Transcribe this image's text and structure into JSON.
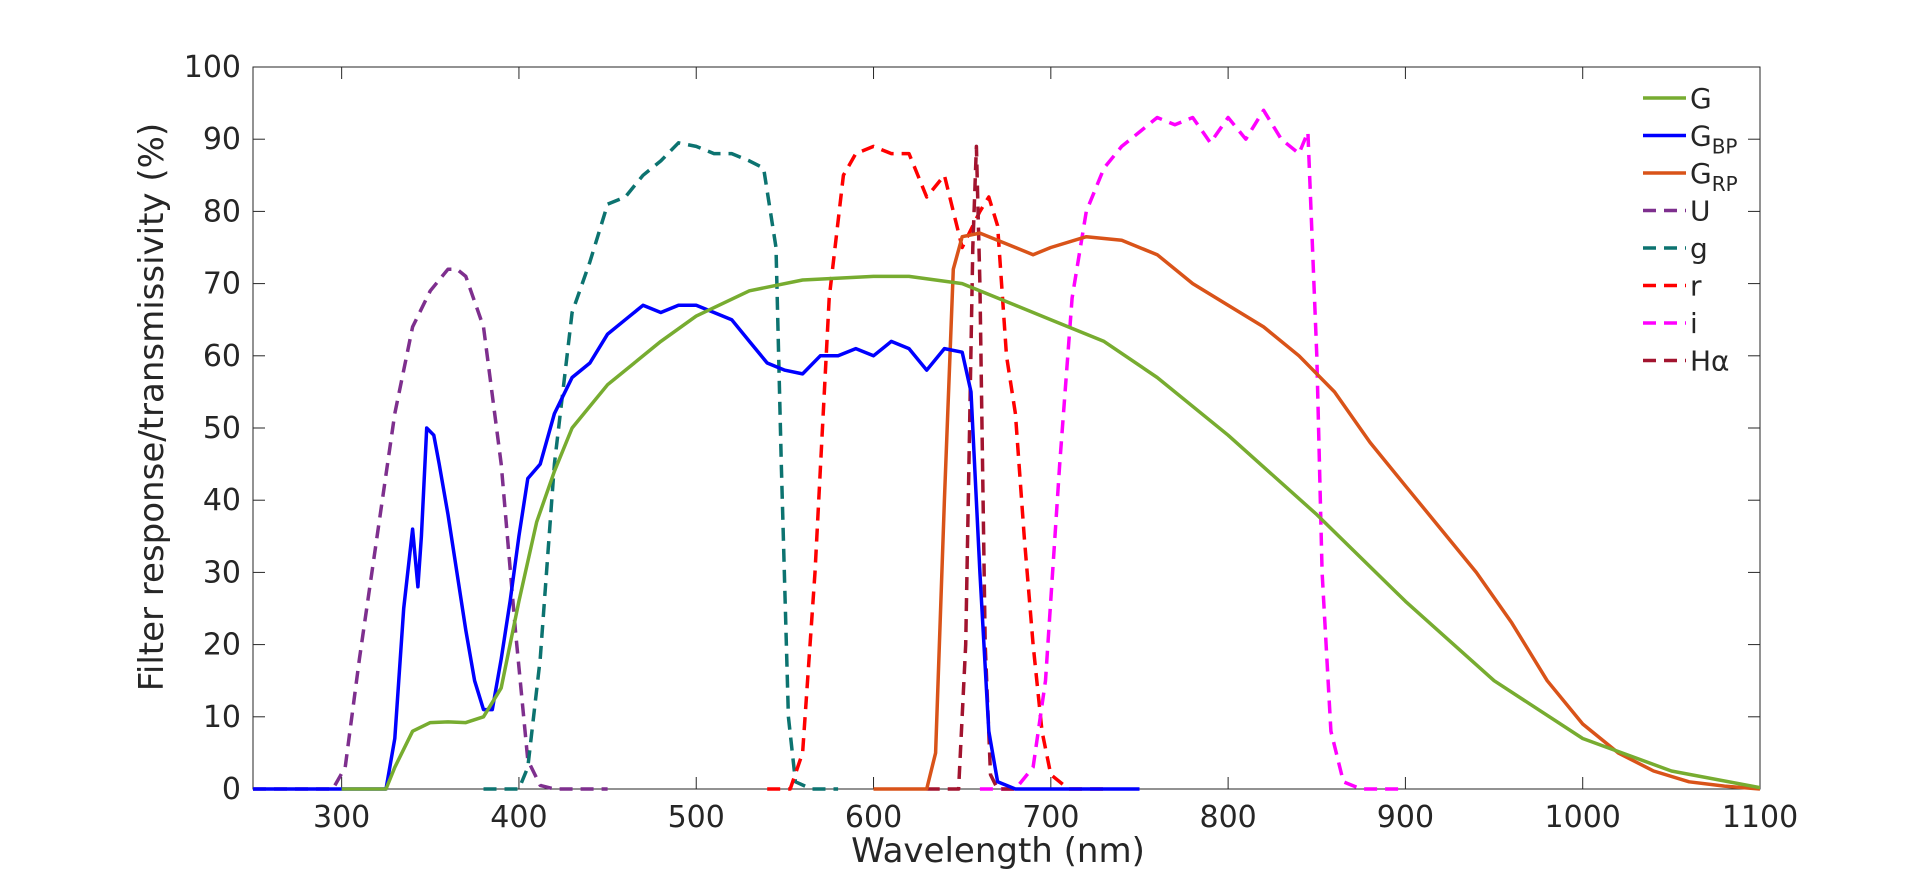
{
  "chart_data": {
    "type": "line",
    "title": "",
    "xlabel": "Wavelength (nm)",
    "ylabel": "Filter response/transmissivity (%)",
    "xlim": [
      250,
      1100
    ],
    "ylim": [
      0,
      100
    ],
    "xticks": [
      300,
      400,
      500,
      600,
      700,
      800,
      900,
      1000,
      1100
    ],
    "yticks": [
      0,
      10,
      20,
      30,
      40,
      50,
      60,
      70,
      80,
      90,
      100
    ],
    "grid": false,
    "legend_position": "top-right",
    "series": [
      {
        "key": "G",
        "name": "G",
        "sub": "",
        "color": "#77ac30",
        "dash": "solid",
        "points": [
          [
            300,
            0
          ],
          [
            325,
            0
          ],
          [
            330,
            3
          ],
          [
            340,
            8
          ],
          [
            350,
            9.2
          ],
          [
            360,
            9.3
          ],
          [
            370,
            9.2
          ],
          [
            380,
            10
          ],
          [
            390,
            14
          ],
          [
            400,
            26
          ],
          [
            410,
            37
          ],
          [
            420,
            44
          ],
          [
            430,
            50
          ],
          [
            450,
            56
          ],
          [
            480,
            62
          ],
          [
            500,
            65.5
          ],
          [
            530,
            69
          ],
          [
            560,
            70.5
          ],
          [
            600,
            71
          ],
          [
            620,
            71
          ],
          [
            650,
            70
          ],
          [
            680,
            67
          ],
          [
            700,
            65
          ],
          [
            730,
            62
          ],
          [
            760,
            57
          ],
          [
            800,
            49
          ],
          [
            850,
            38
          ],
          [
            900,
            26
          ],
          [
            950,
            15
          ],
          [
            1000,
            7
          ],
          [
            1050,
            2.5
          ],
          [
            1100,
            0.2
          ]
        ]
      },
      {
        "key": "GBP",
        "name": "G",
        "sub": "BP",
        "color": "#0000ff",
        "dash": "solid",
        "points": [
          [
            250,
            0
          ],
          [
            325,
            0
          ],
          [
            330,
            7
          ],
          [
            335,
            25
          ],
          [
            340,
            36
          ],
          [
            343,
            28
          ],
          [
            345,
            35
          ],
          [
            348,
            50
          ],
          [
            352,
            49
          ],
          [
            355,
            45
          ],
          [
            360,
            38
          ],
          [
            365,
            30
          ],
          [
            370,
            22
          ],
          [
            375,
            15
          ],
          [
            380,
            11
          ],
          [
            385,
            11
          ],
          [
            390,
            18
          ],
          [
            395,
            26
          ],
          [
            400,
            35
          ],
          [
            405,
            43
          ],
          [
            412,
            45
          ],
          [
            420,
            52
          ],
          [
            430,
            57
          ],
          [
            440,
            59
          ],
          [
            450,
            63
          ],
          [
            460,
            65
          ],
          [
            470,
            67
          ],
          [
            480,
            66
          ],
          [
            490,
            67
          ],
          [
            500,
            67
          ],
          [
            510,
            66
          ],
          [
            520,
            65
          ],
          [
            530,
            62
          ],
          [
            540,
            59
          ],
          [
            550,
            58
          ],
          [
            560,
            57.5
          ],
          [
            570,
            60
          ],
          [
            580,
            60
          ],
          [
            590,
            61
          ],
          [
            600,
            60
          ],
          [
            610,
            62
          ],
          [
            620,
            61
          ],
          [
            630,
            58
          ],
          [
            640,
            61
          ],
          [
            650,
            60.5
          ],
          [
            655,
            55
          ],
          [
            660,
            30
          ],
          [
            665,
            8
          ],
          [
            670,
            1
          ],
          [
            680,
            0
          ],
          [
            750,
            0
          ]
        ]
      },
      {
        "key": "GRP",
        "name": "G",
        "sub": "RP",
        "color": "#d95319",
        "dash": "solid",
        "points": [
          [
            600,
            0
          ],
          [
            630,
            0
          ],
          [
            635,
            5
          ],
          [
            640,
            40
          ],
          [
            645,
            72
          ],
          [
            650,
            76.5
          ],
          [
            660,
            77
          ],
          [
            680,
            75
          ],
          [
            690,
            74
          ],
          [
            700,
            75
          ],
          [
            720,
            76.5
          ],
          [
            740,
            76
          ],
          [
            760,
            74
          ],
          [
            780,
            70
          ],
          [
            800,
            67
          ],
          [
            820,
            64
          ],
          [
            840,
            60
          ],
          [
            860,
            55
          ],
          [
            880,
            48
          ],
          [
            900,
            42
          ],
          [
            920,
            36
          ],
          [
            940,
            30
          ],
          [
            960,
            23
          ],
          [
            980,
            15
          ],
          [
            1000,
            9
          ],
          [
            1020,
            5
          ],
          [
            1040,
            2.5
          ],
          [
            1060,
            1
          ],
          [
            1080,
            0.4
          ],
          [
            1100,
            0
          ]
        ]
      },
      {
        "key": "U",
        "name": "U",
        "sub": "",
        "color": "#7e2f8e",
        "dash": "dashed",
        "points": [
          [
            250,
            0
          ],
          [
            295,
            0
          ],
          [
            302,
            3
          ],
          [
            310,
            18
          ],
          [
            320,
            35
          ],
          [
            330,
            52
          ],
          [
            340,
            64
          ],
          [
            350,
            69
          ],
          [
            360,
            72
          ],
          [
            365,
            72
          ],
          [
            370,
            71
          ],
          [
            380,
            64
          ],
          [
            390,
            45
          ],
          [
            398,
            22
          ],
          [
            405,
            4
          ],
          [
            412,
            0.5
          ],
          [
            420,
            0
          ],
          [
            450,
            0
          ]
        ]
      },
      {
        "key": "g",
        "name": "g",
        "sub": "",
        "color": "#0c7370",
        "dash": "dashed",
        "points": [
          [
            380,
            0
          ],
          [
            400,
            0
          ],
          [
            405,
            3
          ],
          [
            412,
            18
          ],
          [
            420,
            45
          ],
          [
            430,
            66
          ],
          [
            440,
            73
          ],
          [
            450,
            81
          ],
          [
            460,
            82
          ],
          [
            470,
            85
          ],
          [
            480,
            87
          ],
          [
            490,
            89.5
          ],
          [
            500,
            89
          ],
          [
            510,
            88
          ],
          [
            520,
            88
          ],
          [
            530,
            87
          ],
          [
            538,
            86
          ],
          [
            545,
            75
          ],
          [
            548,
            45
          ],
          [
            552,
            10
          ],
          [
            556,
            1
          ],
          [
            565,
            0
          ],
          [
            580,
            0
          ]
        ]
      },
      {
        "key": "r",
        "name": "r",
        "sub": "",
        "color": "#ff0000",
        "dash": "dashed",
        "points": [
          [
            540,
            0
          ],
          [
            553,
            0
          ],
          [
            560,
            5
          ],
          [
            567,
            30
          ],
          [
            575,
            68
          ],
          [
            583,
            85
          ],
          [
            590,
            88
          ],
          [
            600,
            89
          ],
          [
            610,
            88
          ],
          [
            620,
            88
          ],
          [
            630,
            82
          ],
          [
            640,
            85
          ],
          [
            650,
            75
          ],
          [
            660,
            80
          ],
          [
            665,
            82
          ],
          [
            670,
            78
          ],
          [
            675,
            60
          ],
          [
            680,
            52
          ],
          [
            685,
            35
          ],
          [
            690,
            20
          ],
          [
            695,
            8
          ],
          [
            700,
            2
          ],
          [
            710,
            0
          ],
          [
            730,
            0
          ]
        ]
      },
      {
        "key": "i",
        "name": "i",
        "sub": "",
        "color": "#ff00ff",
        "dash": "dashed",
        "points": [
          [
            660,
            0
          ],
          [
            680,
            0
          ],
          [
            690,
            3
          ],
          [
            697,
            15
          ],
          [
            705,
            45
          ],
          [
            712,
            68
          ],
          [
            720,
            80
          ],
          [
            730,
            86
          ],
          [
            740,
            89
          ],
          [
            750,
            91
          ],
          [
            760,
            93
          ],
          [
            770,
            92
          ],
          [
            780,
            93
          ],
          [
            790,
            89.5
          ],
          [
            800,
            93
          ],
          [
            810,
            90
          ],
          [
            820,
            94
          ],
          [
            830,
            90
          ],
          [
            840,
            88
          ],
          [
            845,
            91
          ],
          [
            850,
            60
          ],
          [
            853,
            30
          ],
          [
            858,
            8
          ],
          [
            865,
            1
          ],
          [
            875,
            0
          ],
          [
            900,
            0
          ]
        ]
      },
      {
        "key": "Ha",
        "name": "Hα",
        "sub": "",
        "color": "#a2142f",
        "dash": "dashed",
        "points": [
          [
            630,
            0
          ],
          [
            648,
            0
          ],
          [
            652,
            20
          ],
          [
            656,
            75
          ],
          [
            658,
            89
          ],
          [
            660,
            70
          ],
          [
            663,
            20
          ],
          [
            666,
            2
          ],
          [
            670,
            0
          ],
          [
            680,
            0
          ]
        ]
      }
    ]
  }
}
